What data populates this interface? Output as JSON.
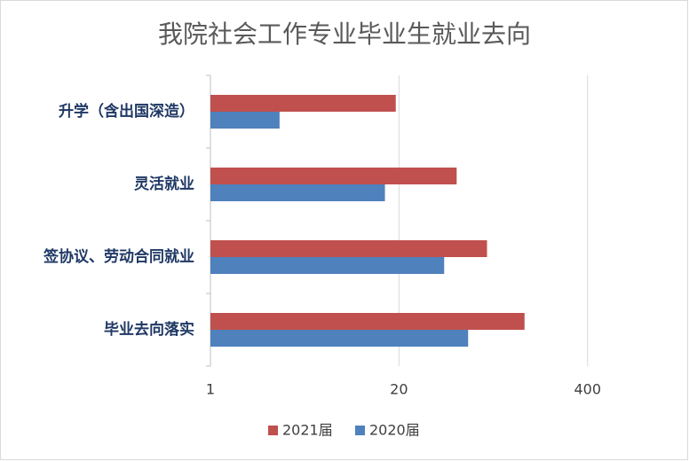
{
  "chart_data": {
    "type": "hbar",
    "title": "我院社会工作专业毕业生就业去向",
    "categories": [
      "升学（含出国深造）",
      "灵活就业",
      "签协议、劳动合同就业",
      "毕业去向落实"
    ],
    "series": [
      {
        "name": "2021届",
        "color": "#c0504d",
        "values": [
          19,
          50,
          81,
          147
        ]
      },
      {
        "name": "2020届",
        "color": "#4f81bd",
        "values": [
          3,
          16,
          41,
          60
        ]
      }
    ],
    "xscale": "log",
    "xlim": [
      1,
      1600
    ],
    "xticks": [
      1,
      20,
      400
    ],
    "grid": true,
    "legend": "bottom"
  }
}
